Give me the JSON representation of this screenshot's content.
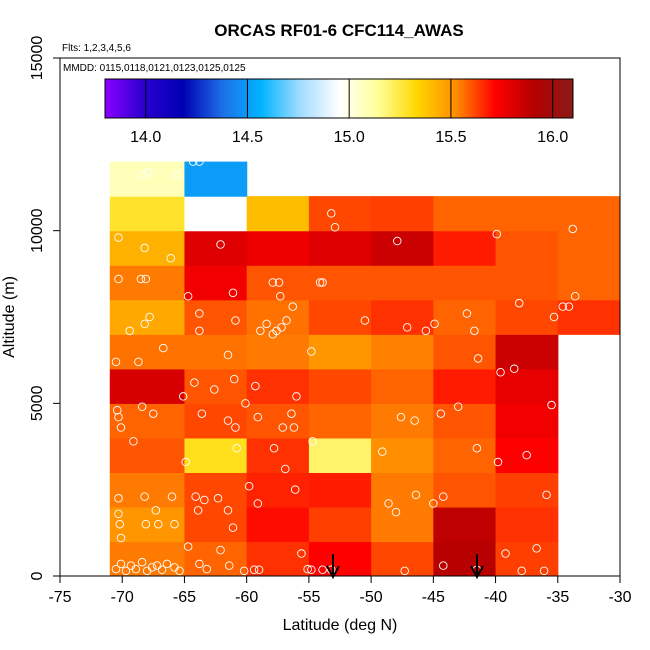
{
  "chart_data": {
    "type": "heatmap",
    "title": "ORCAS RF01-6 CFC114_AWAS",
    "flights_note": "Flts: 1,2,3,4,5,6",
    "dates_note": "MMDD: 0115,0118,0121,0123,0125,0125",
    "xlabel": "Latitude (deg N)",
    "ylabel": "Altitude (m)",
    "xlim": [
      -75,
      -30
    ],
    "ylim": [
      0,
      15000
    ],
    "xticks": [
      -75,
      -70,
      -65,
      -60,
      -55,
      -50,
      -45,
      -40,
      -35,
      -30
    ],
    "yticks": [
      0,
      5000,
      10000,
      15000
    ],
    "xtick_labels": [
      "-75",
      "-70",
      "-65",
      "-60",
      "-55",
      "-50",
      "-45",
      "-40",
      "-35",
      "-30"
    ],
    "ytick_labels": [
      "0",
      "5000",
      "10000",
      "15000"
    ],
    "colorbar": {
      "range": [
        13.8,
        16.1
      ],
      "ticks": [
        14.0,
        14.5,
        15.0,
        15.5,
        16.0
      ],
      "tick_labels": [
        "14.0",
        "14.5",
        "15.0",
        "15.5",
        "16.0"
      ],
      "stops": [
        "#8b00ff",
        "#2a00d0",
        "#0000b4",
        "#1e6ee6",
        "#00b4ff",
        "#a0dcff",
        "#ffffff",
        "#ffff99",
        "#ffd700",
        "#ff8c00",
        "#ff0000",
        "#b40000",
        "#8b1a1a"
      ]
    },
    "lat_bins": [
      [
        -71,
        -65
      ],
      [
        -65,
        -60
      ],
      [
        -60,
        -55
      ],
      [
        -55,
        -50
      ],
      [
        -50,
        -45
      ],
      [
        -45,
        -40
      ],
      [
        -40,
        -35
      ],
      [
        -35,
        -30
      ]
    ],
    "alt_bins": [
      [
        0,
        1000
      ],
      [
        1000,
        2000
      ],
      [
        2000,
        3000
      ],
      [
        3000,
        4000
      ],
      [
        4000,
        5000
      ],
      [
        5000,
        6000
      ],
      [
        6000,
        7000
      ],
      [
        7000,
        8000
      ],
      [
        8000,
        9000
      ],
      [
        9000,
        10000
      ],
      [
        10000,
        11000
      ],
      [
        11000,
        12000
      ]
    ],
    "cells": [
      [
        15.55,
        15.58,
        15.65,
        15.72,
        15.62,
        15.9,
        15.63,
        null
      ],
      [
        15.5,
        15.62,
        15.7,
        15.63,
        15.55,
        15.88,
        15.65,
        null
      ],
      [
        15.55,
        15.62,
        15.67,
        15.68,
        15.55,
        15.6,
        15.63,
        null
      ],
      [
        15.6,
        15.3,
        15.65,
        15.2,
        15.52,
        15.58,
        15.72,
        null
      ],
      [
        15.58,
        15.62,
        15.6,
        15.58,
        15.55,
        15.6,
        15.75,
        null
      ],
      [
        15.82,
        15.6,
        15.65,
        15.62,
        15.58,
        15.68,
        15.78,
        null
      ],
      [
        15.56,
        15.56,
        15.55,
        15.5,
        15.54,
        15.6,
        15.85,
        null
      ],
      [
        15.45,
        15.6,
        15.56,
        15.62,
        15.65,
        15.58,
        15.62,
        15.65
      ],
      [
        15.55,
        15.75,
        15.6,
        15.6,
        15.6,
        15.6,
        15.6,
        15.58
      ],
      [
        15.43,
        15.8,
        15.76,
        15.8,
        15.85,
        15.68,
        15.6,
        15.58
      ],
      [
        15.28,
        14.95,
        15.4,
        15.62,
        15.63,
        15.58,
        15.58,
        15.58
      ],
      [
        15.08,
        14.5,
        null,
        null,
        null,
        null,
        null,
        null
      ]
    ],
    "sample_points": [
      [
        -70.5,
        200
      ],
      [
        -70.1,
        350
      ],
      [
        -69.7,
        150
      ],
      [
        -69.3,
        300
      ],
      [
        -68.9,
        200
      ],
      [
        -68.4,
        400
      ],
      [
        -68.0,
        150
      ],
      [
        -67.6,
        250
      ],
      [
        -67.2,
        300
      ],
      [
        -66.8,
        180
      ],
      [
        -66.4,
        350
      ],
      [
        -65.8,
        250
      ],
      [
        -65.4,
        150
      ],
      [
        -64.7,
        850
      ],
      [
        -63.8,
        350
      ],
      [
        -63.2,
        200
      ],
      [
        -62.1,
        750
      ],
      [
        -61.4,
        300
      ],
      [
        -60.2,
        150
      ],
      [
        -59.4,
        180
      ],
      [
        -59.0,
        180
      ],
      [
        -55.6,
        650
      ],
      [
        -55.1,
        200
      ],
      [
        -54.8,
        180
      ],
      [
        -53.9,
        180
      ],
      [
        -53.2,
        180
      ],
      [
        -47.3,
        150
      ],
      [
        -44.2,
        300
      ],
      [
        -41.5,
        180
      ],
      [
        -39.2,
        650
      ],
      [
        -37.9,
        150
      ],
      [
        -36.7,
        800
      ],
      [
        -36.1,
        150
      ],
      [
        -70.3,
        1800
      ],
      [
        -70.2,
        1500
      ],
      [
        -70.1,
        1100
      ],
      [
        -68.1,
        1500
      ],
      [
        -67.3,
        1900
      ],
      [
        -67.1,
        1500
      ],
      [
        -65.8,
        1500
      ],
      [
        -63.9,
        1900
      ],
      [
        -61.5,
        1900
      ],
      [
        -61.1,
        1400
      ],
      [
        -70.3,
        2250
      ],
      [
        -68.2,
        2300
      ],
      [
        -66.0,
        2300
      ],
      [
        -64.1,
        2300
      ],
      [
        -63.4,
        2200
      ],
      [
        -62.3,
        2250
      ],
      [
        -59.8,
        2600
      ],
      [
        -59.1,
        2100
      ],
      [
        -56.1,
        2500
      ],
      [
        -48.6,
        2100
      ],
      [
        -48.0,
        1850
      ],
      [
        -46.4,
        2350
      ],
      [
        -45.0,
        2100
      ],
      [
        -44.2,
        2300
      ],
      [
        -35.9,
        2350
      ],
      [
        -69.1,
        3900
      ],
      [
        -64.9,
        3300
      ],
      [
        -60.8,
        3700
      ],
      [
        -57.8,
        3700
      ],
      [
        -56.9,
        3100
      ],
      [
        -54.7,
        3900
      ],
      [
        -49.1,
        3600
      ],
      [
        -41.5,
        3700
      ],
      [
        -39.8,
        3300
      ],
      [
        -37.5,
        3500
      ],
      [
        -70.4,
        4800
      ],
      [
        -70.3,
        4600
      ],
      [
        -70.1,
        4300
      ],
      [
        -68.4,
        4900
      ],
      [
        -67.5,
        4700
      ],
      [
        -63.6,
        4700
      ],
      [
        -61.5,
        4500
      ],
      [
        -60.9,
        4300
      ],
      [
        -60.1,
        5000
      ],
      [
        -59.1,
        4600
      ],
      [
        -57.1,
        4300
      ],
      [
        -56.4,
        4700
      ],
      [
        -56.2,
        4300
      ],
      [
        -47.6,
        4600
      ],
      [
        -46.5,
        4500
      ],
      [
        -44.4,
        4700
      ],
      [
        -43.0,
        4900
      ],
      [
        -35.5,
        4950
      ],
      [
        -65.1,
        5200
      ],
      [
        -64.2,
        5600
      ],
      [
        -62.6,
        5400
      ],
      [
        -61.0,
        5700
      ],
      [
        -59.3,
        5500
      ],
      [
        -56.0,
        5200
      ],
      [
        -39.6,
        5900
      ],
      [
        -38.5,
        6000
      ],
      [
        -70.5,
        6200
      ],
      [
        -68.7,
        6200
      ],
      [
        -66.7,
        6600
      ],
      [
        -61.5,
        6400
      ],
      [
        -54.8,
        6500
      ],
      [
        -41.4,
        6300
      ],
      [
        -69.4,
        7100
      ],
      [
        -68.2,
        7300
      ],
      [
        -67.8,
        7500
      ],
      [
        -63.8,
        7100
      ],
      [
        -63.8,
        7600
      ],
      [
        -60.9,
        7400
      ],
      [
        -58.9,
        7100
      ],
      [
        -58.4,
        7300
      ],
      [
        -57.9,
        7000
      ],
      [
        -57.6,
        7100
      ],
      [
        -57.2,
        7200
      ],
      [
        -56.8,
        7400
      ],
      [
        -56.3,
        7800
      ],
      [
        -50.5,
        7400
      ],
      [
        -47.1,
        7200
      ],
      [
        -45.6,
        7100
      ],
      [
        -44.9,
        7300
      ],
      [
        -42.3,
        7600
      ],
      [
        -41.7,
        7100
      ],
      [
        -38.1,
        7900
      ],
      [
        -35.3,
        7500
      ],
      [
        -34.6,
        7800
      ],
      [
        -34.1,
        7800
      ],
      [
        -70.3,
        8600
      ],
      [
        -68.5,
        8600
      ],
      [
        -68.1,
        8600
      ],
      [
        -64.7,
        8100
      ],
      [
        -61.1,
        8200
      ],
      [
        -57.9,
        8500
      ],
      [
        -57.4,
        8500
      ],
      [
        -57.3,
        8100
      ],
      [
        -54.1,
        8500
      ],
      [
        -53.9,
        8500
      ],
      [
        -33.6,
        8100
      ],
      [
        -70.3,
        9800
      ],
      [
        -68.2,
        9500
      ],
      [
        -66.1,
        9200
      ],
      [
        -62.1,
        9600
      ],
      [
        -47.9,
        9700
      ],
      [
        -39.9,
        9900
      ],
      [
        -33.8,
        10050
      ],
      [
        -53.2,
        10500
      ],
      [
        -52.9,
        10100
      ],
      [
        -68.3,
        11600
      ],
      [
        -67.9,
        11700
      ],
      [
        -65.6,
        11600
      ],
      [
        -64.3,
        12000
      ],
      [
        -63.8,
        12000
      ]
    ]
  }
}
